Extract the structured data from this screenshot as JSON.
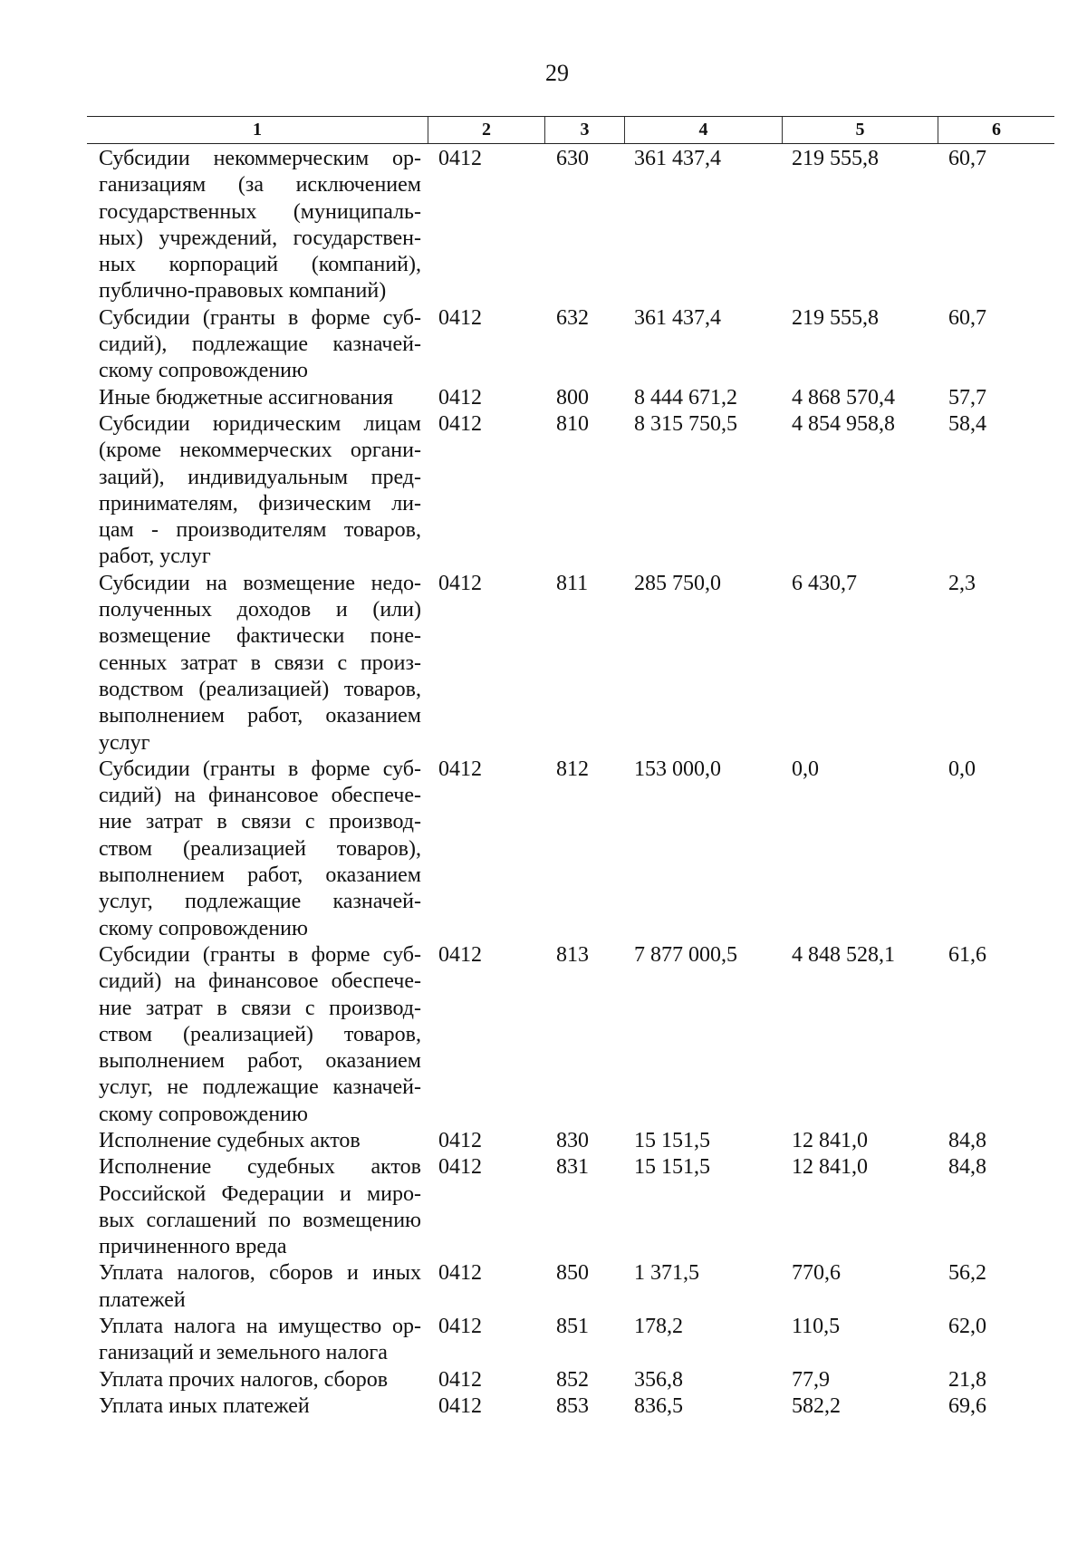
{
  "page_number": "29",
  "headers": [
    "1",
    "2",
    "3",
    "4",
    "5",
    "6"
  ],
  "rows": [
    {
      "lines": [
        "Субсидии некоммерческим ор-",
        "ганизациям (за исключением",
        "государственных (муниципаль-",
        "ных) учреждений, государствен-",
        "ных корпораций (компаний),",
        "публично-правовых компаний)"
      ],
      "c2": "0412",
      "c3": "630",
      "c4": "361 437,4",
      "c5": "219 555,8",
      "c6": "60,7"
    },
    {
      "lines": [
        "Субсидии (гранты в форме суб-",
        "сидий), подлежащие казначей-",
        "скому сопровождению"
      ],
      "c2": "0412",
      "c3": "632",
      "c4": "361 437,4",
      "c5": "219 555,8",
      "c6": "60,7"
    },
    {
      "lines": [
        "Иные бюджетные ассигнования"
      ],
      "c2": "0412",
      "c3": "800",
      "c4": "8 444 671,2",
      "c5": "4 868 570,4",
      "c6": "57,7"
    },
    {
      "lines": [
        "Субсидии юридическим лицам",
        "(кроме некоммерческих органи-",
        "заций), индивидуальным пред-",
        "принимателям, физическим ли-",
        "цам - производителям товаров,",
        "работ, услуг"
      ],
      "c2": "0412",
      "c3": "810",
      "c4": "8 315 750,5",
      "c5": "4 854 958,8",
      "c6": "58,4"
    },
    {
      "lines": [
        "Субсидии на возмещение недо-",
        "полученных доходов и (или)",
        "возмещение фактически поне-",
        "сенных затрат в связи с произ-",
        "водством (реализацией) товаров,",
        "выполнением работ, оказанием",
        "услуг"
      ],
      "c2": "0412",
      "c3": "811",
      "c4": "285 750,0",
      "c5": "6 430,7",
      "c6": "2,3"
    },
    {
      "lines": [
        "Субсидии (гранты в форме суб-",
        "сидий) на финансовое обеспече-",
        "ние затрат в связи с производ-",
        "ством (реализацией товаров),",
        "выполнением работ, оказанием",
        "услуг, подлежащие казначей-",
        "скому сопровождению"
      ],
      "c2": "0412",
      "c3": "812",
      "c4": "153 000,0",
      "c5": "0,0",
      "c6": "0,0"
    },
    {
      "lines": [
        "Субсидии (гранты в форме суб-",
        "сидий) на финансовое обеспече-",
        "ние затрат в связи с производ-",
        "ством (реализацией) товаров,",
        "выполнением работ, оказанием",
        "услуг, не подлежащие казначей-",
        "скому сопровождению"
      ],
      "c2": "0412",
      "c3": "813",
      "c4": "7 877 000,5",
      "c5": "4 848 528,1",
      "c6": "61,6"
    },
    {
      "lines": [
        "Исполнение судебных актов"
      ],
      "c2": "0412",
      "c3": "830",
      "c4": "15 151,5",
      "c5": "12 841,0",
      "c6": "84,8"
    },
    {
      "lines": [
        "Исполнение судебных актов",
        "Российской Федерации и миро-",
        "вых соглашений по возмещению",
        "причиненного вреда"
      ],
      "c2": "0412",
      "c3": "831",
      "c4": "15 151,5",
      "c5": "12 841,0",
      "c6": "84,8"
    },
    {
      "lines": [
        "Уплата налогов, сборов и иных",
        "платежей"
      ],
      "c2": "0412",
      "c3": "850",
      "c4": "1 371,5",
      "c5": "770,6",
      "c6": "56,2"
    },
    {
      "lines": [
        "Уплата налога на имущество ор-",
        "ганизаций и земельного налога"
      ],
      "c2": "0412",
      "c3": "851",
      "c4": "178,2",
      "c5": "110,5",
      "c6": "62,0"
    },
    {
      "lines": [
        "Уплата прочих налогов, сборов"
      ],
      "c2": "0412",
      "c3": "852",
      "c4": "356,8",
      "c5": "77,9",
      "c6": "21,8"
    },
    {
      "lines": [
        "Уплата иных платежей"
      ],
      "c2": "0412",
      "c3": "853",
      "c4": "836,5",
      "c5": "582,2",
      "c6": "69,6"
    }
  ]
}
